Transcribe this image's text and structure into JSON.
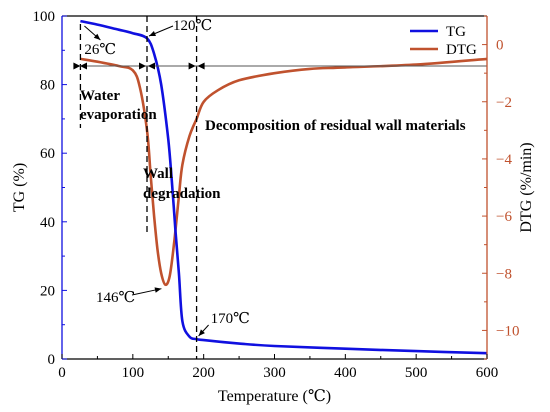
{
  "chart_data": {
    "type": "line",
    "xlabel": "Temperature (℃)",
    "ylabel_left": "TG (%)",
    "ylabel_right": "DTG (%/min)",
    "xlim": [
      0,
      600
    ],
    "ylim_left": [
      0,
      100
    ],
    "ylim_right": [
      -11,
      1
    ],
    "x_ticks": [
      0,
      100,
      200,
      300,
      400,
      500,
      600
    ],
    "y_left_ticks": [
      0,
      20,
      40,
      60,
      80,
      100
    ],
    "y_right_ticks": [
      0,
      -2,
      -4,
      -6,
      -8,
      -10
    ],
    "grid": false,
    "legend_position": "top-right",
    "series": [
      {
        "name": "TG",
        "axis": "left",
        "color": "#1010e0",
        "x": [
          26,
          50,
          80,
          100,
          120,
          130,
          140,
          150,
          155,
          160,
          165,
          170,
          180,
          190,
          200,
          250,
          300,
          400,
          500,
          600
        ],
        "y": [
          98.5,
          97.5,
          96,
          95,
          93.5,
          89,
          80,
          64,
          52,
          38,
          25,
          11,
          6.5,
          5.8,
          5.5,
          4.5,
          3.8,
          3,
          2.3,
          1.7
        ]
      },
      {
        "name": "DTG",
        "axis": "right",
        "color": "#c0522e",
        "x": [
          26,
          50,
          80,
          100,
          110,
          120,
          125,
          130,
          135,
          140,
          146,
          152,
          158,
          165,
          170,
          180,
          190,
          200,
          220,
          250,
          300,
          350,
          400,
          500,
          600
        ],
        "y": [
          -0.5,
          -0.6,
          -0.75,
          -0.9,
          -1.5,
          -3.0,
          -4.5,
          -6.0,
          -7.2,
          -8.0,
          -8.4,
          -8.1,
          -7.0,
          -5.3,
          -4.2,
          -3.2,
          -2.6,
          -2.0,
          -1.6,
          -1.25,
          -1.0,
          -0.85,
          -0.8,
          -0.7,
          -0.5
        ]
      }
    ],
    "annotations": [
      {
        "text": "26℃",
        "x": 26
      },
      {
        "text": "120℃",
        "x": 120
      },
      {
        "text": "146℃",
        "x": 146
      },
      {
        "text": "170℃",
        "x": 170
      },
      {
        "text": "Water",
        "bold": true
      },
      {
        "text": "evaporation",
        "bold": true
      },
      {
        "text": "Wall",
        "bold": true
      },
      {
        "text": "degradation",
        "bold": true
      },
      {
        "text": "Decomposition of residual wall materials",
        "bold": true
      }
    ]
  }
}
